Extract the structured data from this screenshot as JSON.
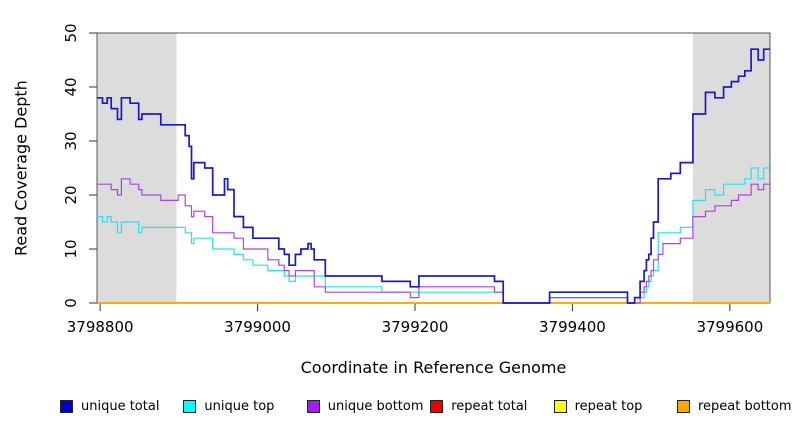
{
  "chart_data": {
    "type": "line",
    "step_style": "step-after",
    "title": "",
    "xlabel": "Coordinate in Reference Genome",
    "ylabel": "Read Coverage Depth",
    "xlim": [
      3798796,
      3799651
    ],
    "ylim": [
      0,
      50
    ],
    "x_ticks": [
      3798800,
      3799000,
      3799200,
      3799400,
      3799600
    ],
    "y_ticks": [
      0,
      10,
      20,
      30,
      40,
      50
    ],
    "grid": false,
    "shaded_regions": [
      {
        "name": "left-gray-band",
        "x0": 3798796,
        "x1": 3798897,
        "color": "#DCDCDC"
      },
      {
        "name": "right-gray-band",
        "x0": 3799553,
        "x1": 3799651,
        "color": "#DCDCDC"
      }
    ],
    "series": [
      {
        "name": "repeat total",
        "color": "#EE0000",
        "width": 1.2,
        "points": [
          [
            3798796,
            0
          ],
          [
            3799651,
            0
          ]
        ]
      },
      {
        "name": "repeat top",
        "color": "#FFFF00",
        "width": 1.2,
        "points": [
          [
            3798796,
            0
          ],
          [
            3799651,
            0
          ]
        ]
      },
      {
        "name": "repeat bottom",
        "color": "#FFA500",
        "width": 1.8,
        "points": [
          [
            3798796,
            0
          ],
          [
            3799651,
            0
          ]
        ]
      },
      {
        "name": "unique top",
        "color": "#22E4EE",
        "width": 1.2,
        "points": [
          [
            3798796,
            16
          ],
          [
            3798803,
            15
          ],
          [
            3798809,
            16
          ],
          [
            3798814,
            15
          ],
          [
            3798822,
            13
          ],
          [
            3798827,
            15
          ],
          [
            3798849,
            13
          ],
          [
            3798853,
            14
          ],
          [
            3798877,
            14
          ],
          [
            3798908,
            13
          ],
          [
            3798916,
            11
          ],
          [
            3798919,
            12
          ],
          [
            3798943,
            10
          ],
          [
            3798970,
            9
          ],
          [
            3798982,
            8
          ],
          [
            3798994,
            7
          ],
          [
            3799013,
            6
          ],
          [
            3799034,
            5
          ],
          [
            3799040,
            4
          ],
          [
            3799048,
            5
          ],
          [
            3799086,
            3
          ],
          [
            3799158,
            2
          ],
          [
            3799312,
            0
          ],
          [
            3799371,
            1
          ],
          [
            3799470,
            0
          ],
          [
            3799479,
            1
          ],
          [
            3799491,
            2
          ],
          [
            3799494,
            3
          ],
          [
            3799497,
            4
          ],
          [
            3799500,
            5
          ],
          [
            3799503,
            6
          ],
          [
            3799509,
            13
          ],
          [
            3799537,
            14
          ],
          [
            3799553,
            19
          ],
          [
            3799569,
            21
          ],
          [
            3799581,
            20
          ],
          [
            3799592,
            22
          ],
          [
            3799619,
            23
          ],
          [
            3799627,
            25
          ],
          [
            3799636,
            23
          ],
          [
            3799643,
            25
          ],
          [
            3799651,
            25
          ]
        ]
      },
      {
        "name": "unique bottom",
        "color": "#AA44E8",
        "width": 1.2,
        "points": [
          [
            3798796,
            22
          ],
          [
            3798814,
            21
          ],
          [
            3798822,
            20
          ],
          [
            3798827,
            23
          ],
          [
            3798838,
            22
          ],
          [
            3798849,
            21
          ],
          [
            3798853,
            20
          ],
          [
            3798877,
            19
          ],
          [
            3798899,
            20
          ],
          [
            3798908,
            18
          ],
          [
            3798916,
            16
          ],
          [
            3798919,
            17
          ],
          [
            3798933,
            16
          ],
          [
            3798943,
            13
          ],
          [
            3798970,
            12
          ],
          [
            3798982,
            10
          ],
          [
            3799013,
            8
          ],
          [
            3799027,
            7
          ],
          [
            3799034,
            6
          ],
          [
            3799040,
            5
          ],
          [
            3799048,
            6
          ],
          [
            3799072,
            3
          ],
          [
            3799086,
            2
          ],
          [
            3799194,
            1
          ],
          [
            3799205,
            3
          ],
          [
            3799301,
            2
          ],
          [
            3799312,
            0
          ],
          [
            3799371,
            1
          ],
          [
            3799470,
            0
          ],
          [
            3799486,
            2
          ],
          [
            3799491,
            3
          ],
          [
            3799494,
            4
          ],
          [
            3799497,
            5
          ],
          [
            3799500,
            6
          ],
          [
            3799503,
            8
          ],
          [
            3799509,
            9
          ],
          [
            3799515,
            11
          ],
          [
            3799537,
            12
          ],
          [
            3799553,
            16
          ],
          [
            3799569,
            17
          ],
          [
            3799581,
            18
          ],
          [
            3799602,
            19
          ],
          [
            3799611,
            20
          ],
          [
            3799627,
            22
          ],
          [
            3799636,
            21
          ],
          [
            3799643,
            22
          ],
          [
            3799651,
            22
          ]
        ]
      },
      {
        "name": "unique total",
        "color": "#1A1ACC",
        "width": 1.7,
        "points": [
          [
            3798796,
            38
          ],
          [
            3798803,
            37
          ],
          [
            3798809,
            38
          ],
          [
            3798814,
            36
          ],
          [
            3798822,
            34
          ],
          [
            3798827,
            38
          ],
          [
            3798838,
            37
          ],
          [
            3798849,
            34
          ],
          [
            3798853,
            35
          ],
          [
            3798877,
            33
          ],
          [
            3798908,
            31
          ],
          [
            3798913,
            29
          ],
          [
            3798916,
            23
          ],
          [
            3798919,
            26
          ],
          [
            3798933,
            25
          ],
          [
            3798943,
            20
          ],
          [
            3798958,
            23
          ],
          [
            3798962,
            21
          ],
          [
            3798970,
            16
          ],
          [
            3798982,
            14
          ],
          [
            3798994,
            12
          ],
          [
            3799027,
            10
          ],
          [
            3799034,
            9
          ],
          [
            3799040,
            7
          ],
          [
            3799048,
            9
          ],
          [
            3799055,
            10
          ],
          [
            3799064,
            11
          ],
          [
            3799068,
            10
          ],
          [
            3799072,
            8
          ],
          [
            3799086,
            5
          ],
          [
            3799158,
            4
          ],
          [
            3799194,
            3
          ],
          [
            3799205,
            5
          ],
          [
            3799301,
            4
          ],
          [
            3799312,
            0
          ],
          [
            3799371,
            2
          ],
          [
            3799470,
            0
          ],
          [
            3799479,
            1
          ],
          [
            3799486,
            4
          ],
          [
            3799491,
            6
          ],
          [
            3799494,
            8
          ],
          [
            3799497,
            9
          ],
          [
            3799500,
            12
          ],
          [
            3799503,
            15
          ],
          [
            3799509,
            23
          ],
          [
            3799525,
            24
          ],
          [
            3799537,
            26
          ],
          [
            3799553,
            35
          ],
          [
            3799569,
            39
          ],
          [
            3799581,
            38
          ],
          [
            3799592,
            40
          ],
          [
            3799602,
            41
          ],
          [
            3799611,
            42
          ],
          [
            3799619,
            43
          ],
          [
            3799627,
            47
          ],
          [
            3799636,
            45
          ],
          [
            3799643,
            47
          ],
          [
            3799651,
            47
          ]
        ]
      }
    ],
    "legend": {
      "position": "bottom",
      "items": [
        {
          "label": "unique total",
          "color": "#0000CD"
        },
        {
          "label": "unique top",
          "color": "#00FFFF"
        },
        {
          "label": "unique bottom",
          "color": "#A020F0"
        },
        {
          "label": "repeat total",
          "color": "#EE0000"
        },
        {
          "label": "repeat top",
          "color": "#FFFF00"
        },
        {
          "label": "repeat bottom",
          "color": "#FFA500"
        }
      ]
    },
    "axis_color": "#555555",
    "tick_color": "#333333"
  }
}
